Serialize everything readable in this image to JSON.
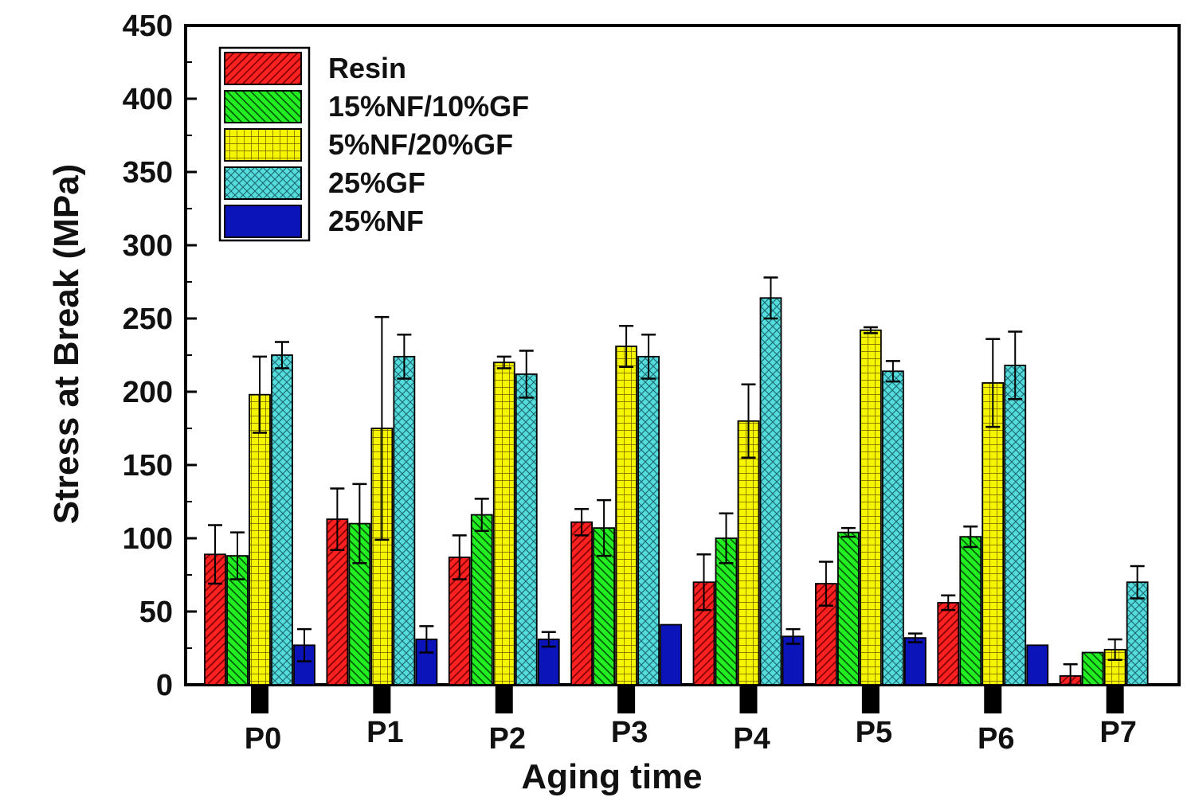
{
  "chart_data": {
    "type": "bar",
    "xlabel": "Aging time",
    "ylabel": "Stress at Break (MPa)",
    "ylim": [
      0,
      450
    ],
    "yticks": [
      0,
      50,
      100,
      150,
      200,
      250,
      300,
      350,
      400,
      450
    ],
    "categories": [
      "P0",
      "P1",
      "P2",
      "P3",
      "P4",
      "P5",
      "P6",
      "P7"
    ],
    "legend_position": "top-left",
    "grid": false,
    "series": [
      {
        "name": "Resin",
        "color": "#ff2020",
        "pattern": "diagonal-lines",
        "values": [
          89,
          113,
          87,
          111,
          70,
          69,
          56,
          6
        ],
        "errors": [
          20,
          21,
          15,
          9,
          19,
          15,
          5,
          8
        ]
      },
      {
        "name": "15%NF/10%GF",
        "color": "#22ee22",
        "pattern": "back-diagonal-lines",
        "values": [
          88,
          110,
          116,
          107,
          100,
          104,
          101,
          22
        ],
        "errors": [
          16,
          27,
          11,
          19,
          17,
          3,
          7,
          0
        ]
      },
      {
        "name": "5%NF/20%GF",
        "color": "#f5f500",
        "pattern": "grid",
        "values": [
          198,
          175,
          220,
          231,
          180,
          242,
          206,
          24
        ],
        "errors": [
          26,
          76,
          4,
          14,
          25,
          2,
          30,
          7
        ]
      },
      {
        "name": "25%GF",
        "color": "#55dddd",
        "pattern": "crosshatch",
        "values": [
          225,
          224,
          212,
          224,
          264,
          214,
          218,
          70
        ],
        "errors": [
          9,
          15,
          16,
          15,
          14,
          7,
          23,
          11
        ]
      },
      {
        "name": "25%NF",
        "color": "#0a14b8",
        "pattern": "solid",
        "values": [
          27,
          31,
          31,
          41,
          33,
          32,
          27,
          0
        ],
        "errors": [
          11,
          9,
          5,
          0,
          5,
          3,
          0,
          0
        ]
      }
    ]
  }
}
